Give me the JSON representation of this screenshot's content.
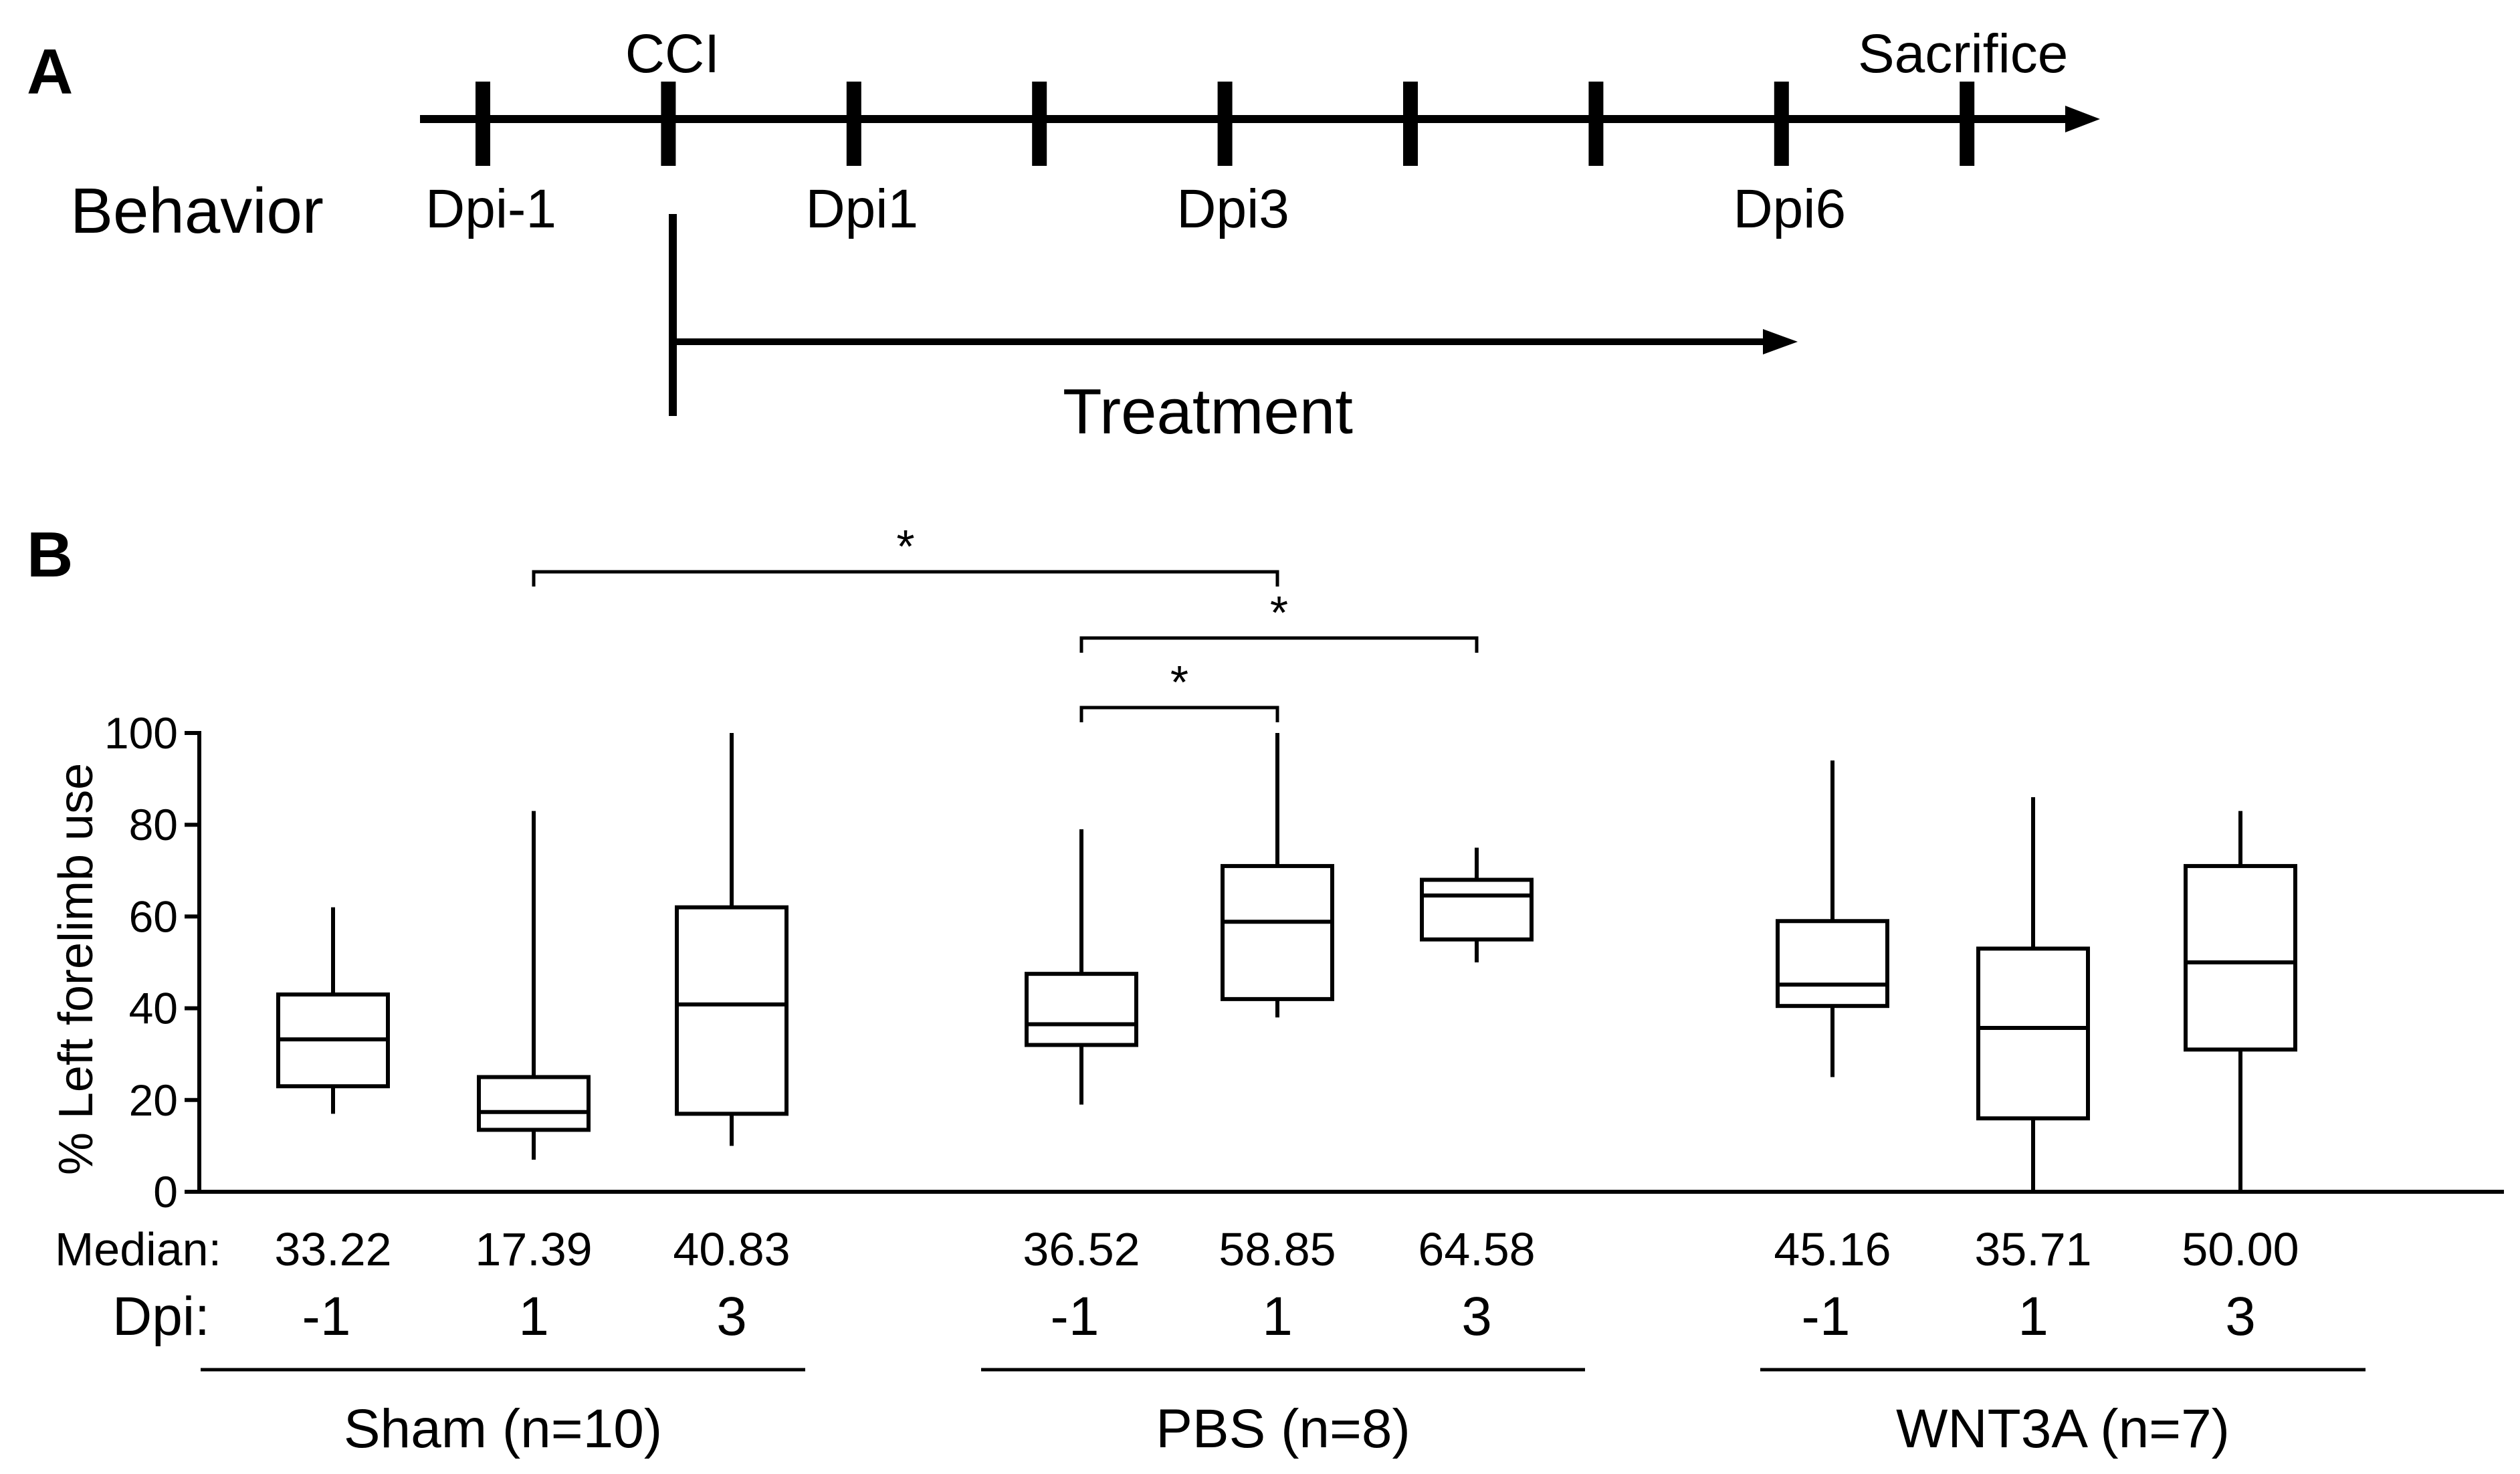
{
  "panel_a": {
    "label": "A",
    "row_label": "Behavior",
    "top_labels": [
      {
        "text": "CCI",
        "tick": 1
      },
      {
        "text": "Sacrifice",
        "tick": 8
      }
    ],
    "bottom_labels": [
      {
        "text": "Dpi-1",
        "tick": 0
      },
      {
        "text": "Dpi1",
        "tick": 2
      },
      {
        "text": "Dpi3",
        "tick": 4
      },
      {
        "text": "Dpi6",
        "tick": 7
      }
    ],
    "tick_count": 9,
    "treatment_label": "Treatment"
  },
  "chart_data": {
    "type": "box",
    "label": "B",
    "ylabel": "% Left forelimb use",
    "ylim": [
      0,
      100
    ],
    "yticks": [
      0,
      20,
      40,
      60,
      80,
      100
    ],
    "median_row_label": "Median:",
    "dpi_row_label": "Dpi:",
    "groups": [
      {
        "name": "Sham (n=10)",
        "boxes": [
          {
            "dpi": "-1",
            "median_label": "33.22",
            "min": 17,
            "q1": 23,
            "median": 33.22,
            "q3": 43,
            "max": 62
          },
          {
            "dpi": "1",
            "median_label": "17.39",
            "min": 7,
            "q1": 13.5,
            "median": 17.39,
            "q3": 25,
            "max": 83
          },
          {
            "dpi": "3",
            "median_label": "40.83",
            "min": 10,
            "q1": 17,
            "median": 40.83,
            "q3": 62,
            "max": 100
          }
        ]
      },
      {
        "name": "PBS (n=8)",
        "boxes": [
          {
            "dpi": "-1",
            "median_label": "36.52",
            "min": 19,
            "q1": 32,
            "median": 36.52,
            "q3": 47.5,
            "max": 79
          },
          {
            "dpi": "1",
            "median_label": "58.85",
            "min": 38,
            "q1": 42,
            "median": 58.85,
            "q3": 71,
            "max": 100
          },
          {
            "dpi": "3",
            "median_label": "64.58",
            "min": 50,
            "q1": 55,
            "median": 64.58,
            "q3": 68,
            "max": 75
          }
        ]
      },
      {
        "name": "WNT3A (n=7)",
        "boxes": [
          {
            "dpi": "-1",
            "median_label": "45.16",
            "min": 25,
            "q1": 40.5,
            "median": 45.16,
            "q3": 59,
            "max": 94
          },
          {
            "dpi": "1",
            "median_label": "35.71",
            "min": 0,
            "q1": 16,
            "median": 35.71,
            "q3": 53,
            "max": 86
          },
          {
            "dpi": "3",
            "median_label": "50.00",
            "min": 0,
            "q1": 31,
            "median": 50.0,
            "q3": 71,
            "max": 83
          }
        ]
      }
    ],
    "significance": [
      {
        "from": [
          0,
          1
        ],
        "to": [
          1,
          1
        ],
        "label": "*"
      },
      {
        "from": [
          1,
          0
        ],
        "to": [
          1,
          2
        ],
        "label": "*"
      },
      {
        "from": [
          1,
          0
        ],
        "to": [
          1,
          1
        ],
        "label": "*"
      }
    ]
  }
}
